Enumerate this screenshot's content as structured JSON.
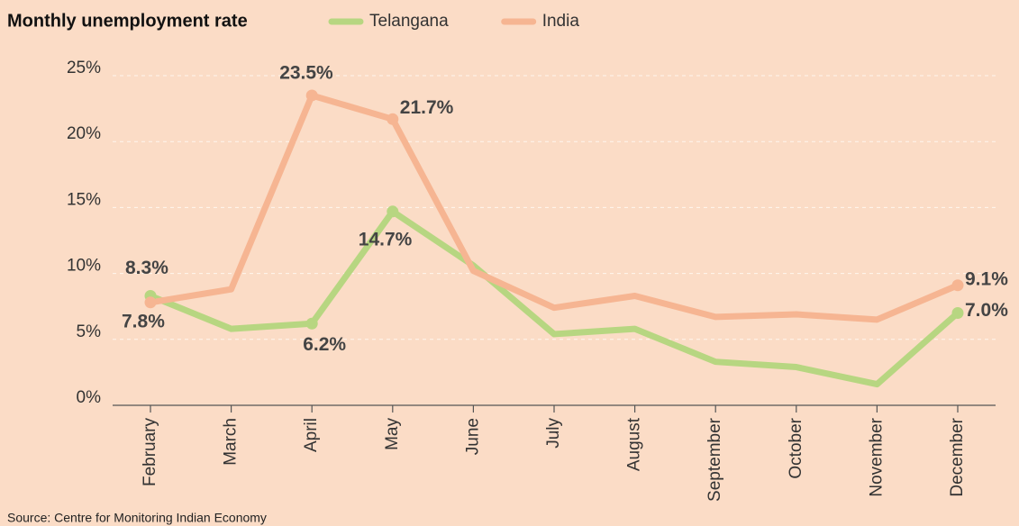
{
  "chart_data": {
    "type": "line",
    "title": "Monthly unemployment rate",
    "source": "Source: Centre for Monitoring Indian Economy",
    "categories": [
      "February",
      "March",
      "April",
      "May",
      "June",
      "July",
      "August",
      "September",
      "October",
      "November",
      "December"
    ],
    "series": [
      {
        "name": "Telangana",
        "color": "#b7d681",
        "values": [
          8.3,
          5.8,
          6.2,
          14.7,
          10.6,
          5.4,
          5.8,
          3.3,
          2.9,
          1.6,
          7.0
        ],
        "value_labels": [
          "8.3%",
          null,
          "6.2%",
          "14.7%",
          null,
          null,
          null,
          null,
          null,
          null,
          "7.0%"
        ]
      },
      {
        "name": "India",
        "color": "#f6b592",
        "values": [
          7.8,
          8.8,
          23.5,
          21.7,
          10.2,
          7.4,
          8.3,
          6.7,
          6.9,
          6.5,
          9.1
        ],
        "value_labels": [
          "7.8%",
          null,
          "23.5%",
          "21.7%",
          null,
          null,
          null,
          null,
          null,
          null,
          "9.1%"
        ]
      }
    ],
    "ylim": [
      0,
      25
    ],
    "yticks": [
      {
        "value": 0,
        "label": "0%"
      },
      {
        "value": 5,
        "label": "5%"
      },
      {
        "value": 10,
        "label": "10%"
      },
      {
        "value": 15,
        "label": "15%"
      },
      {
        "value": 20,
        "label": "20%"
      },
      {
        "value": 25,
        "label": "25%"
      }
    ],
    "grid": true,
    "legend": "top"
  }
}
